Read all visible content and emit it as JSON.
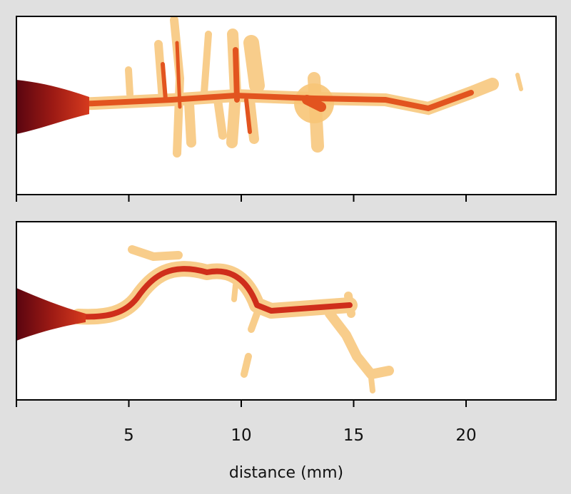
{
  "chart_data": {
    "type": "image",
    "xlabel": "distance (mm)",
    "xlim": [
      0,
      24
    ],
    "xticks": [
      5,
      10,
      15,
      20
    ]
  }
}
